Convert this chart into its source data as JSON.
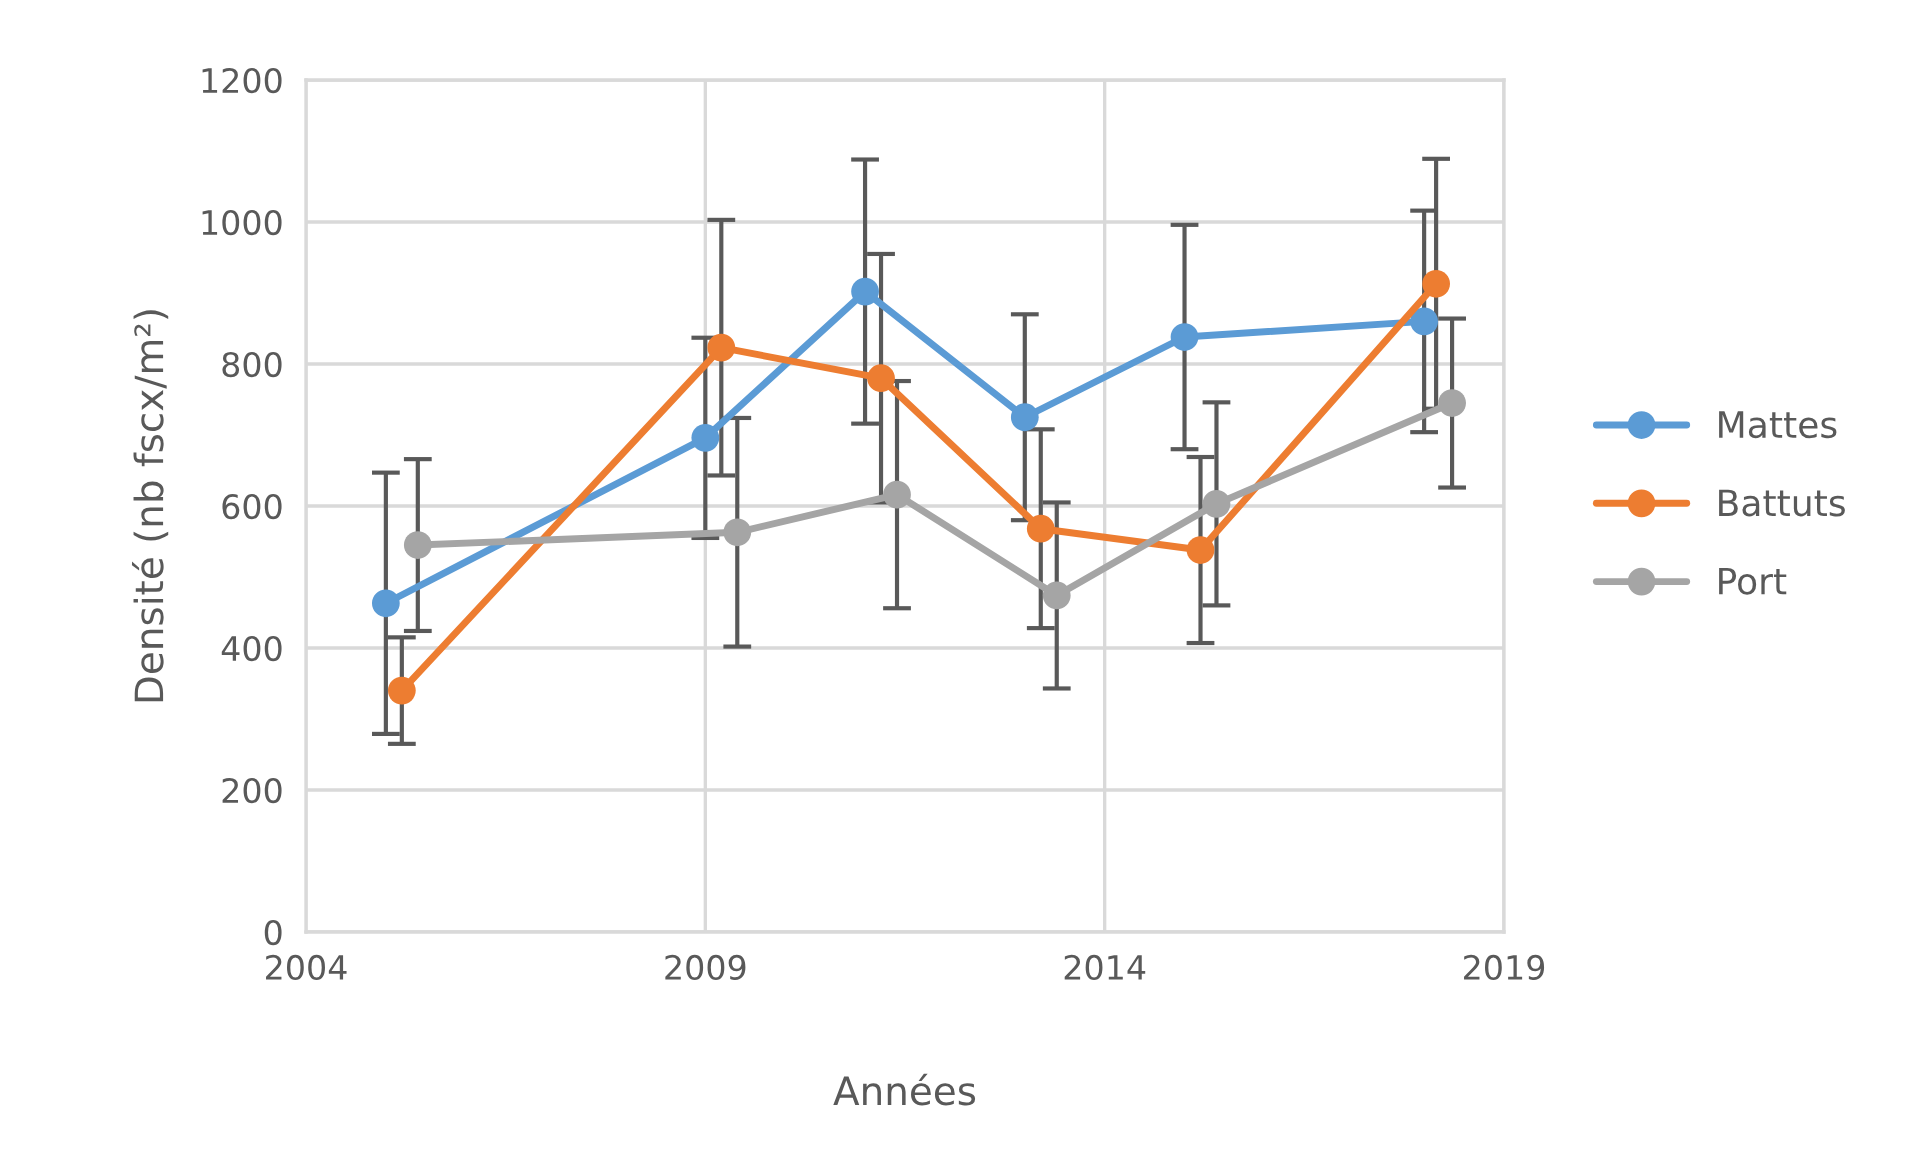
{
  "chart_data": {
    "type": "line",
    "xlabel": "Années",
    "ylabel": "Densité (nb fscx/m²)",
    "xlim": [
      2004,
      2019
    ],
    "xticks": [
      2004,
      2009,
      2014,
      2019
    ],
    "ylim": [
      0,
      1200
    ],
    "yticks": [
      0,
      200,
      400,
      600,
      800,
      1000,
      1200
    ],
    "grid": true,
    "legend": "right",
    "marker": "circle",
    "line_style": "solid",
    "series": [
      {
        "name": "Mattes",
        "color": "#5b9bd5",
        "x": [
          2005.0,
          2009.0,
          2011.0,
          2013.0,
          2015.0,
          2018.0
        ],
        "values": [
          463,
          696,
          902,
          725,
          838,
          860
        ],
        "errors": [
          184,
          141,
          186,
          145,
          158,
          156
        ]
      },
      {
        "name": "Battuts",
        "color": "#ed7d31",
        "x": [
          2005.2,
          2009.2,
          2011.2,
          2013.2,
          2015.2,
          2018.15
        ],
        "values": [
          340,
          823,
          780,
          568,
          538,
          913
        ],
        "errors": [
          75,
          180,
          175,
          140,
          131,
          176
        ]
      },
      {
        "name": "Port",
        "color": "#a5a5a5",
        "x": [
          2005.4,
          2009.4,
          2011.4,
          2013.4,
          2015.4,
          2018.35
        ],
        "values": [
          545,
          563,
          616,
          474,
          603,
          745
        ],
        "errors": [
          121,
          161,
          160,
          131,
          143,
          119
        ]
      }
    ]
  }
}
